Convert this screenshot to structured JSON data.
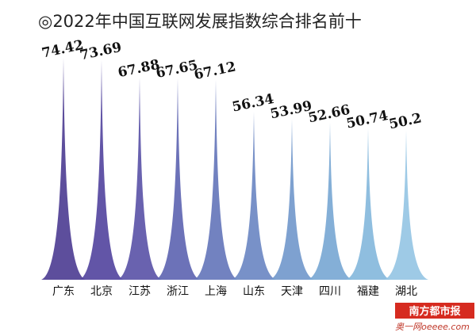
{
  "chart_data": {
    "type": "spike",
    "title": "◎2022年中国互联网发展指数综合排名前十",
    "categories": [
      "广东",
      "北京",
      "江苏",
      "浙江",
      "上海",
      "山东",
      "天津",
      "四川",
      "福建",
      "湖北"
    ],
    "values": [
      74.42,
      73.69,
      67.88,
      67.65,
      67.12,
      56.34,
      53.99,
      52.66,
      50.74,
      50.2
    ],
    "colors": [
      "#4f3f94",
      "#5547a0",
      "#5c55a8",
      "#6066b2",
      "#6677bb",
      "#6c88c3",
      "#7399cc",
      "#7aa8d4",
      "#86b8dc",
      "#96c6e4"
    ],
    "watermark": {
      "brand": "南方都市报",
      "site": "奥一网oeeee.com"
    }
  }
}
